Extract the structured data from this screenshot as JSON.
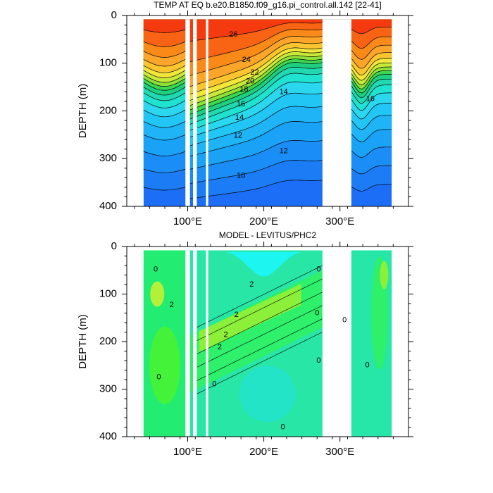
{
  "chart_data": [
    {
      "type": "contour",
      "title": "TEMP AT EQ b.e20.B1850.f09_g16.pi_control.all.142 [22-41]",
      "ylabel": "DEPTH (m)",
      "xlabel": "",
      "xlim": [
        20,
        390
      ],
      "ylim": [
        400,
        0
      ],
      "x_ticks": [
        100,
        200,
        300
      ],
      "x_tick_labels": [
        "100°E",
        "200°E",
        "300°E"
      ],
      "y_ticks": [
        0,
        100,
        200,
        300,
        400
      ],
      "y_tick_labels": [
        "0",
        "100",
        "200",
        "300",
        "400"
      ],
      "contour_labels": [
        {
          "text": "26",
          "x": 160,
          "y": 40
        },
        {
          "text": "24",
          "x": 177,
          "y": 93
        },
        {
          "text": "22",
          "x": 188,
          "y": 120
        },
        {
          "text": "20",
          "x": 182,
          "y": 138
        },
        {
          "text": "18",
          "x": 174,
          "y": 155
        },
        {
          "text": "16",
          "x": 170,
          "y": 186
        },
        {
          "text": "14",
          "x": 168,
          "y": 214
        },
        {
          "text": "12",
          "x": 166,
          "y": 252
        },
        {
          "text": "10",
          "x": 170,
          "y": 336
        },
        {
          "text": "14",
          "x": 226,
          "y": 160
        },
        {
          "text": "12",
          "x": 226,
          "y": 284
        },
        {
          "text": "16",
          "x": 340,
          "y": 175
        }
      ]
    },
    {
      "type": "contour",
      "title": "MODEL - LEVITUS/PHC2",
      "ylabel": "DEPTH (m)",
      "xlabel": "",
      "xlim": [
        20,
        390
      ],
      "ylim": [
        400,
        0
      ],
      "x_ticks": [
        100,
        200,
        300
      ],
      "x_tick_labels": [
        "100°E",
        "200°E",
        "300°E"
      ],
      "y_ticks": [
        0,
        100,
        200,
        300,
        400
      ],
      "y_tick_labels": [
        "0",
        "100",
        "200",
        "300",
        "400"
      ],
      "contour_labels": [
        {
          "text": "0",
          "x": 58,
          "y": 48
        },
        {
          "text": "2",
          "x": 184,
          "y": 80
        },
        {
          "text": "2",
          "x": 164,
          "y": 144
        },
        {
          "text": "2",
          "x": 150,
          "y": 186
        },
        {
          "text": "2",
          "x": 142,
          "y": 212
        },
        {
          "text": "0",
          "x": 135,
          "y": 290
        },
        {
          "text": "0",
          "x": 272,
          "y": 240
        },
        {
          "text": "0",
          "x": 270,
          "y": 140
        },
        {
          "text": "0",
          "x": 272,
          "y": 48
        },
        {
          "text": "0",
          "x": 306,
          "y": 155
        },
        {
          "text": "0",
          "x": 336,
          "y": 250
        },
        {
          "text": "0",
          "x": 225,
          "y": 380
        },
        {
          "text": "2",
          "x": 79,
          "y": 123
        },
        {
          "text": "0",
          "x": 62,
          "y": 275
        }
      ]
    }
  ]
}
